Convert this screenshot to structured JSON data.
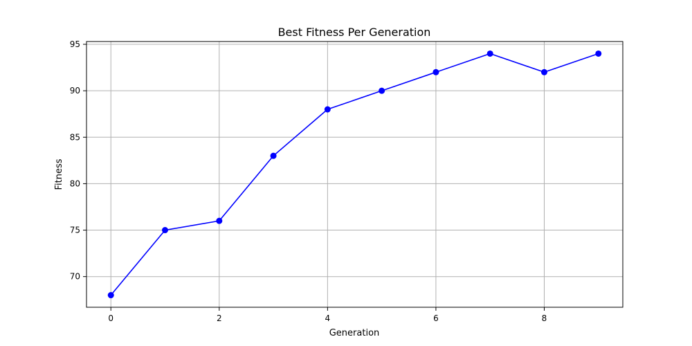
{
  "chart_data": {
    "type": "line",
    "title": "Best Fitness Per Generation",
    "xlabel": "Generation",
    "ylabel": "Fitness",
    "x": [
      0,
      1,
      2,
      3,
      4,
      5,
      6,
      7,
      8,
      9
    ],
    "series": [
      {
        "values": [
          68,
          75,
          76,
          83,
          88,
          90,
          92,
          94,
          92,
          94
        ],
        "color": "#0000ff",
        "marker": "circle"
      }
    ],
    "xlim": [
      -0.45,
      9.45
    ],
    "ylim": [
      66.7,
      95.3
    ],
    "xticks": [
      0,
      2,
      4,
      6,
      8
    ],
    "yticks": [
      70,
      75,
      80,
      85,
      90,
      95
    ],
    "grid": true
  }
}
